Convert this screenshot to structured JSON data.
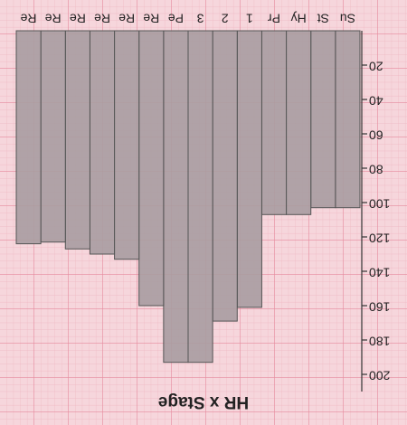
{
  "chart_data": {
    "type": "bar",
    "title": "HR x Stage",
    "categories": [
      "Su",
      "St",
      "Hy",
      "Pr",
      "1",
      "2",
      "3",
      "Pe",
      "Re",
      "Re",
      "Re",
      "Re",
      "Re",
      "Re"
    ],
    "values": [
      103,
      103,
      107,
      107,
      161,
      169,
      193,
      193,
      160,
      133,
      130,
      127,
      123,
      124
    ],
    "color": "#a99ca1",
    "ylim": [
      0,
      210
    ],
    "yticks": [
      20,
      40,
      60,
      80,
      100,
      120,
      140,
      160,
      180,
      200
    ]
  }
}
